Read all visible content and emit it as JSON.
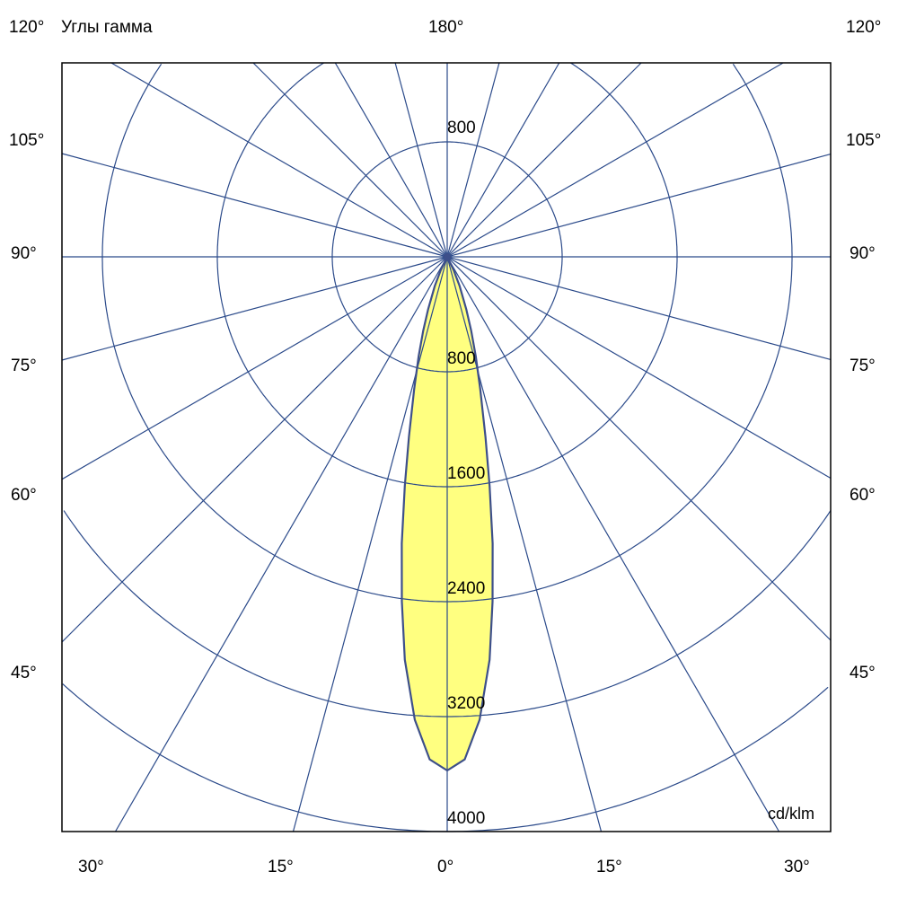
{
  "chart_data": {
    "type": "polar",
    "title": "Углы гамма",
    "unit": "cd/klm",
    "top_label": "180°",
    "side_labels": [
      "120°",
      "105°",
      "90°",
      "75°",
      "60°",
      "45°"
    ],
    "bottom_labels": [
      "30°",
      "15°",
      "0°",
      "15°",
      "30°"
    ],
    "radial_ticks": [
      800,
      1600,
      2400,
      3200,
      4000
    ],
    "radial_top_tick": "800",
    "angle_grid_step_deg": 15,
    "rmax": 4000,
    "series": [
      {
        "gamma_deg": [
          0,
          2,
          4,
          6,
          7.5,
          9,
          10.5,
          12,
          14,
          16,
          18,
          20,
          23,
          26,
          30
        ],
        "intensity": [
          3575,
          3500,
          3230,
          2820,
          2420,
          2020,
          1620,
          1280,
          950,
          720,
          540,
          390,
          220,
          100,
          0
        ]
      }
    ],
    "colors": {
      "grid": "#2b4a8a",
      "fill": "#ffff80",
      "outline": "#3d4f8a",
      "frame": "#000000"
    }
  }
}
